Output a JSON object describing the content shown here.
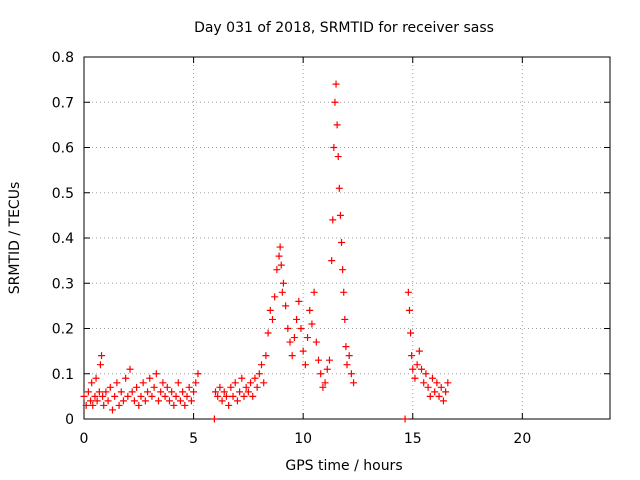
{
  "chart_data": {
    "type": "scatter",
    "title": "Day 031 of 2018, SRMTID for receiver sass",
    "xlabel": "GPS time / hours",
    "ylabel": "SRMTID / TECUs",
    "xlim": [
      0,
      24
    ],
    "ylim": [
      0,
      0.8
    ],
    "x_ticks": [
      0,
      5,
      10,
      15,
      20
    ],
    "y_ticks": [
      0,
      0.1,
      0.2,
      0.3,
      0.4,
      0.5,
      0.6,
      0.7,
      0.8
    ],
    "x_tick_labels": [
      "0",
      "5",
      "10",
      "15",
      "20"
    ],
    "y_tick_labels": [
      "0",
      "0.1",
      "0.2",
      "0.3",
      "0.4",
      "0.5",
      "0.6",
      "0.7",
      "0.8"
    ],
    "grid": true,
    "marker": "+",
    "series_color": "#ff0000",
    "series": [
      {
        "name": "SRMTID",
        "points": [
          [
            0.0,
            0.05
          ],
          [
            0.1,
            0.03
          ],
          [
            0.2,
            0.06
          ],
          [
            0.3,
            0.04
          ],
          [
            0.35,
            0.08
          ],
          [
            0.4,
            0.03
          ],
          [
            0.5,
            0.05
          ],
          [
            0.55,
            0.09
          ],
          [
            0.6,
            0.04
          ],
          [
            0.7,
            0.06
          ],
          [
            0.75,
            0.12
          ],
          [
            0.8,
            0.14
          ],
          [
            0.85,
            0.05
          ],
          [
            0.9,
            0.03
          ],
          [
            1.0,
            0.06
          ],
          [
            1.1,
            0.04
          ],
          [
            1.2,
            0.07
          ],
          [
            1.3,
            0.02
          ],
          [
            1.4,
            0.05
          ],
          [
            1.5,
            0.08
          ],
          [
            1.6,
            0.03
          ],
          [
            1.7,
            0.06
          ],
          [
            1.8,
            0.04
          ],
          [
            1.9,
            0.09
          ],
          [
            2.0,
            0.05
          ],
          [
            2.1,
            0.11
          ],
          [
            2.2,
            0.06
          ],
          [
            2.3,
            0.04
          ],
          [
            2.4,
            0.07
          ],
          [
            2.5,
            0.03
          ],
          [
            2.6,
            0.05
          ],
          [
            2.7,
            0.08
          ],
          [
            2.8,
            0.04
          ],
          [
            2.9,
            0.06
          ],
          [
            3.0,
            0.09
          ],
          [
            3.1,
            0.05
          ],
          [
            3.2,
            0.07
          ],
          [
            3.3,
            0.1
          ],
          [
            3.4,
            0.04
          ],
          [
            3.5,
            0.06
          ],
          [
            3.6,
            0.08
          ],
          [
            3.7,
            0.05
          ],
          [
            3.8,
            0.07
          ],
          [
            3.9,
            0.04
          ],
          [
            4.0,
            0.06
          ],
          [
            4.1,
            0.03
          ],
          [
            4.2,
            0.05
          ],
          [
            4.3,
            0.08
          ],
          [
            4.4,
            0.04
          ],
          [
            4.5,
            0.06
          ],
          [
            4.6,
            0.03
          ],
          [
            4.7,
            0.05
          ],
          [
            4.8,
            0.07
          ],
          [
            4.9,
            0.04
          ],
          [
            5.0,
            0.06
          ],
          [
            5.1,
            0.08
          ],
          [
            5.2,
            0.1
          ],
          [
            5.95,
            0.0
          ],
          [
            6.0,
            0.06
          ],
          [
            6.1,
            0.05
          ],
          [
            6.2,
            0.07
          ],
          [
            6.3,
            0.04
          ],
          [
            6.4,
            0.06
          ],
          [
            6.5,
            0.05
          ],
          [
            6.6,
            0.03
          ],
          [
            6.7,
            0.07
          ],
          [
            6.8,
            0.05
          ],
          [
            6.9,
            0.08
          ],
          [
            7.0,
            0.04
          ],
          [
            7.1,
            0.06
          ],
          [
            7.2,
            0.09
          ],
          [
            7.3,
            0.05
          ],
          [
            7.4,
            0.07
          ],
          [
            7.5,
            0.06
          ],
          [
            7.6,
            0.08
          ],
          [
            7.7,
            0.05
          ],
          [
            7.8,
            0.09
          ],
          [
            7.9,
            0.07
          ],
          [
            8.0,
            0.1
          ],
          [
            8.1,
            0.12
          ],
          [
            8.2,
            0.08
          ],
          [
            8.3,
            0.14
          ],
          [
            8.4,
            0.19
          ],
          [
            8.5,
            0.24
          ],
          [
            8.6,
            0.22
          ],
          [
            8.7,
            0.27
          ],
          [
            8.8,
            0.33
          ],
          [
            8.9,
            0.36
          ],
          [
            8.95,
            0.38
          ],
          [
            9.0,
            0.34
          ],
          [
            9.05,
            0.28
          ],
          [
            9.1,
            0.3
          ],
          [
            9.2,
            0.25
          ],
          [
            9.3,
            0.2
          ],
          [
            9.4,
            0.17
          ],
          [
            9.5,
            0.14
          ],
          [
            9.6,
            0.18
          ],
          [
            9.7,
            0.22
          ],
          [
            9.8,
            0.26
          ],
          [
            9.9,
            0.2
          ],
          [
            10.0,
            0.15
          ],
          [
            10.1,
            0.12
          ],
          [
            10.2,
            0.18
          ],
          [
            10.3,
            0.24
          ],
          [
            10.4,
            0.21
          ],
          [
            10.5,
            0.28
          ],
          [
            10.6,
            0.17
          ],
          [
            10.7,
            0.13
          ],
          [
            10.8,
            0.1
          ],
          [
            10.9,
            0.07
          ],
          [
            11.0,
            0.08
          ],
          [
            11.1,
            0.11
          ],
          [
            11.2,
            0.13
          ],
          [
            11.3,
            0.35
          ],
          [
            11.35,
            0.44
          ],
          [
            11.4,
            0.6
          ],
          [
            11.45,
            0.7
          ],
          [
            11.5,
            0.74
          ],
          [
            11.55,
            0.65
          ],
          [
            11.6,
            0.58
          ],
          [
            11.65,
            0.51
          ],
          [
            11.7,
            0.45
          ],
          [
            11.75,
            0.39
          ],
          [
            11.8,
            0.33
          ],
          [
            11.85,
            0.28
          ],
          [
            11.9,
            0.22
          ],
          [
            11.95,
            0.16
          ],
          [
            12.0,
            0.12
          ],
          [
            12.1,
            0.14
          ],
          [
            12.2,
            0.1
          ],
          [
            12.3,
            0.08
          ],
          [
            14.65,
            0.0
          ],
          [
            14.8,
            0.28
          ],
          [
            14.85,
            0.24
          ],
          [
            14.9,
            0.19
          ],
          [
            14.95,
            0.14
          ],
          [
            15.0,
            0.11
          ],
          [
            15.1,
            0.09
          ],
          [
            15.2,
            0.12
          ],
          [
            15.3,
            0.15
          ],
          [
            15.4,
            0.11
          ],
          [
            15.5,
            0.08
          ],
          [
            15.6,
            0.1
          ],
          [
            15.7,
            0.07
          ],
          [
            15.8,
            0.05
          ],
          [
            15.9,
            0.09
          ],
          [
            16.0,
            0.06
          ],
          [
            16.1,
            0.08
          ],
          [
            16.2,
            0.05
          ],
          [
            16.3,
            0.07
          ],
          [
            16.4,
            0.04
          ],
          [
            16.5,
            0.06
          ],
          [
            16.6,
            0.08
          ]
        ]
      }
    ]
  }
}
